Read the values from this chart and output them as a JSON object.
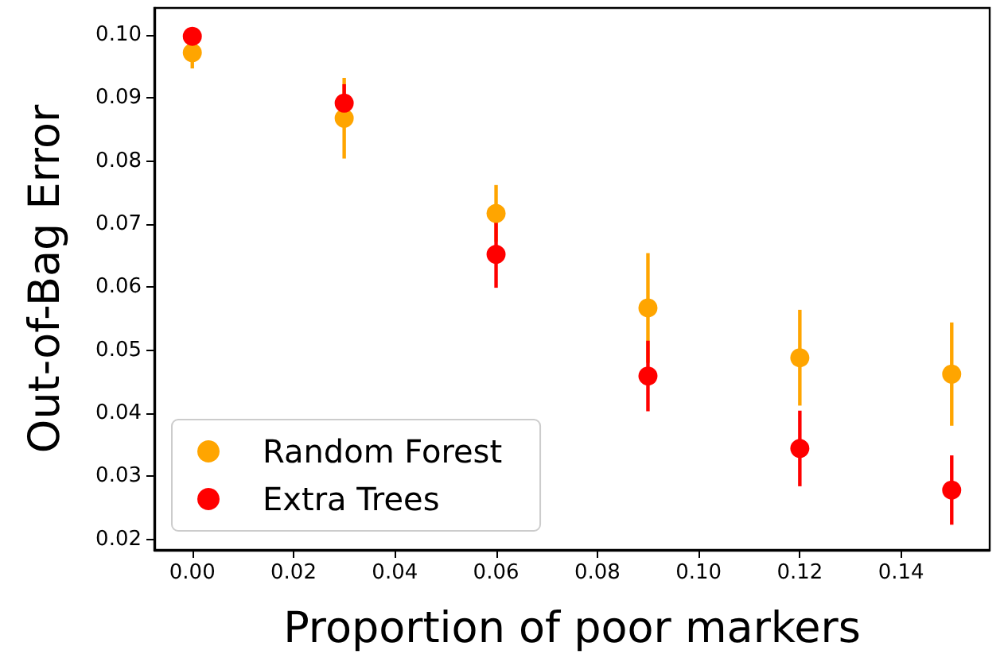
{
  "chart_data": {
    "type": "scatter",
    "xlabel": "Proportion of poor markers",
    "ylabel": "Out-of-Bag Error",
    "x": [
      0,
      0.03,
      0.06,
      0.09,
      0.12,
      0.15
    ],
    "series": [
      {
        "name": "Random Forest",
        "color": "#ffa500",
        "values": [
          0.0972,
          0.0868,
          0.0717,
          0.0567,
          0.0488,
          0.0462
        ],
        "errors": [
          0.0025,
          0.0064,
          0.0045,
          0.0087,
          0.0076,
          0.0082
        ]
      },
      {
        "name": "Extra Trees",
        "color": "#ff0000",
        "values": [
          0.0998,
          0.0892,
          0.0652,
          0.0459,
          0.0344,
          0.0278
        ],
        "errors": [
          0.001,
          0.003,
          0.0053,
          0.0056,
          0.006,
          0.0055
        ]
      }
    ],
    "xlim": [
      -0.0075,
      0.1575
    ],
    "xticks": [
      {
        "value": 0,
        "label": "0.00"
      },
      0.02,
      0.04,
      0.06,
      0.08,
      {
        "value": 0.1,
        "label": "0.10"
      },
      0.12,
      0.14
    ],
    "ylim": [
      0.0183,
      0.1043
    ],
    "yticks": [
      0.02,
      0.03,
      0.04,
      0.05,
      0.06,
      0.07,
      0.08,
      0.09,
      {
        "value": 0.1,
        "label": "0.10"
      }
    ],
    "grid": false,
    "legend": "bottom left",
    "marker": "circle"
  }
}
